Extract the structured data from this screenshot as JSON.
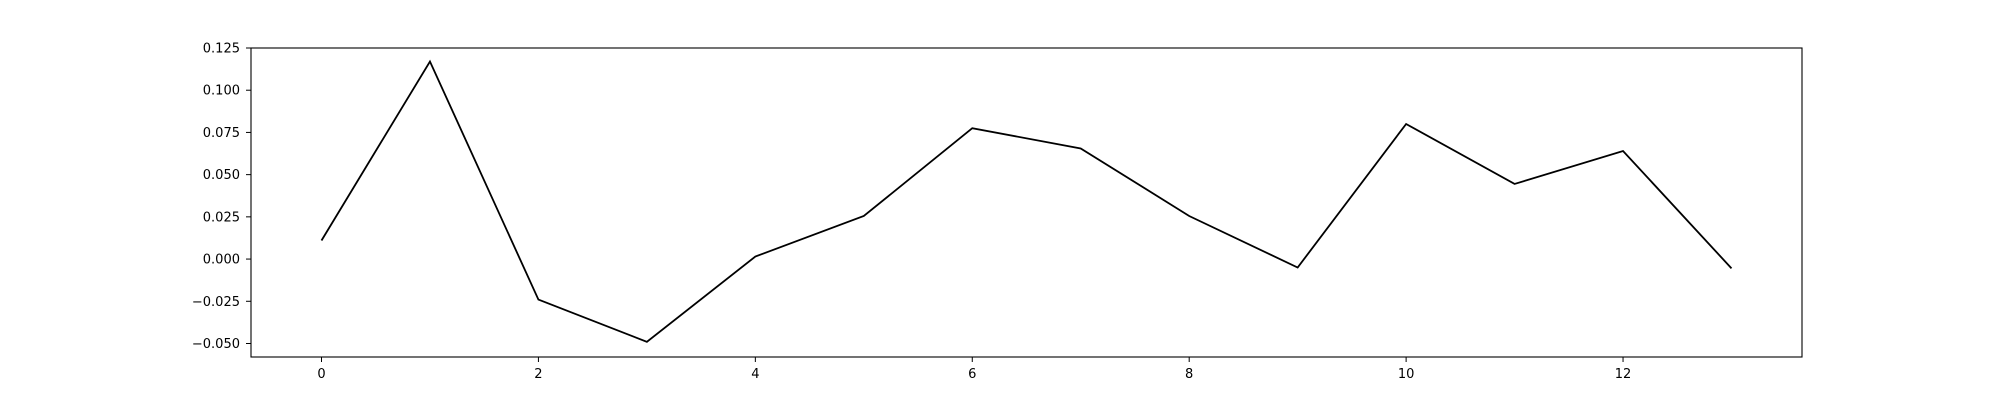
{
  "chart_data": {
    "type": "line",
    "title": "",
    "xlabel": "",
    "ylabel": "",
    "xlim": [
      -0.65,
      13.65
    ],
    "ylim": [
      -0.058,
      0.125
    ],
    "x_ticks": [
      0,
      2,
      4,
      6,
      8,
      10,
      12
    ],
    "x_tick_labels": [
      "0",
      "2",
      "4",
      "6",
      "8",
      "10",
      "12"
    ],
    "y_ticks": [
      -0.05,
      -0.025,
      0.0,
      0.025,
      0.05,
      0.075,
      0.1,
      0.125
    ],
    "y_tick_labels": [
      "−0.050",
      "−0.025",
      "0.000",
      "0.025",
      "0.050",
      "0.075",
      "0.100",
      "0.125"
    ],
    "grid": false,
    "legend": "none",
    "series": [
      {
        "color": "#000000",
        "x": [
          0,
          1,
          2,
          3,
          4,
          5,
          6,
          7,
          8,
          9,
          10,
          11,
          12,
          13
        ],
        "values": [
          0.011,
          0.117,
          -0.024,
          -0.049,
          0.0015,
          0.0255,
          0.0775,
          0.0655,
          0.0255,
          -0.005,
          0.08,
          0.0445,
          0.064,
          -0.0055
        ]
      }
    ]
  }
}
